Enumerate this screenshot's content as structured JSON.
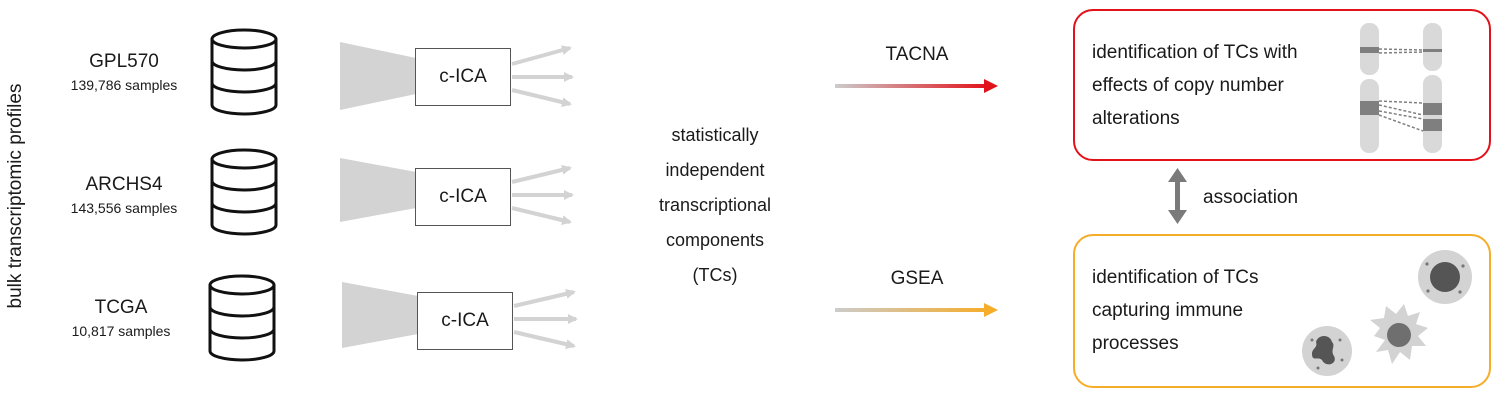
{
  "side_label": "bulk transcriptomic profiles",
  "datasets": [
    {
      "name": "GPL570",
      "count": "139,786 samples",
      "method": "c-ICA"
    },
    {
      "name": "ARCHS4",
      "count": "143,556 samples",
      "method": "c-ICA"
    },
    {
      "name": "TCGA",
      "count": "10,817 samples",
      "method": "c-ICA"
    }
  ],
  "components_text": [
    "statistically",
    "independent",
    "transcriptional",
    "components",
    "(TCs)"
  ],
  "arrows": {
    "top_label": "TACNA",
    "bottom_label": "GSEA",
    "top_color": "#e2121a",
    "bottom_color": "#f5ad2a"
  },
  "results": {
    "cna": [
      "identification of TCs with",
      "effects of copy number",
      "alterations"
    ],
    "immune": [
      "identification of TCs",
      "capturing immune",
      "processes"
    ]
  },
  "association_label": "association",
  "icons": [
    "database-icon",
    "funnel-icon",
    "chromosome-icon",
    "immune-cell-icon"
  ]
}
